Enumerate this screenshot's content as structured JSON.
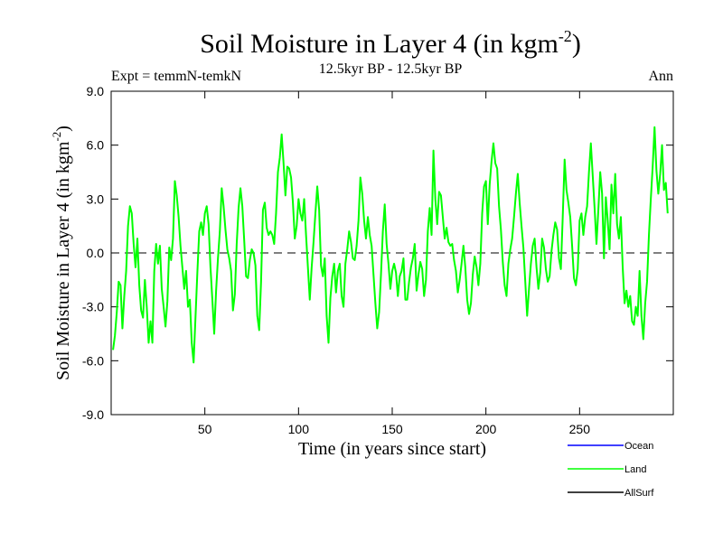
{
  "chart_data": {
    "type": "line",
    "title": "Soil Moisture in Layer 4 (in kgm",
    "title_sup": "-2",
    "title_close": ")",
    "subtitle": "12.5kyr BP - 12.5kyr BP",
    "left_label": "Expt = temmN-temkN",
    "right_label": "Ann",
    "xlabel": "Time (in years since start)",
    "ylabel": "Soil Moisture in Layer 4 (in kgm",
    "ylabel_sup": "-2",
    "ylabel_close": ")",
    "xlim": [
      0,
      300
    ],
    "ylim": [
      -9,
      9
    ],
    "x_ticks": [
      50,
      100,
      150,
      200,
      250
    ],
    "x_tick_labels": [
      "50",
      "100",
      "150",
      "200",
      "250"
    ],
    "y_ticks": [
      -9,
      -6,
      -3,
      0,
      3,
      6,
      9
    ],
    "y_tick_labels": [
      "-9.0",
      "-6.0",
      "-3.0",
      "0.0",
      "3.0",
      "6.0",
      "9.0"
    ],
    "zero_line": true,
    "legend": [
      {
        "name": "Ocean",
        "color": "#0000ff"
      },
      {
        "name": "Land",
        "color": "#00ff00"
      },
      {
        "name": "AllSurf",
        "color": "#000000"
      }
    ],
    "series": [
      {
        "name": "Land",
        "color": "#00ff00",
        "x_start": 1,
        "x_step": 1,
        "values": [
          -5.4,
          -4.6,
          -3.3,
          -1.6,
          -1.8,
          -4.2,
          -2.4,
          -1.0,
          1.5,
          2.6,
          2.2,
          0.5,
          -0.8,
          0.8,
          -1.8,
          -3.2,
          -3.6,
          -1.5,
          -3.0,
          -5.0,
          -3.8,
          -5.0,
          -1.0,
          0.5,
          -0.6,
          0.4,
          -2.0,
          -3.0,
          -4.1,
          -2.7,
          0.3,
          -0.4,
          0.8,
          4.0,
          3.2,
          2.0,
          0.4,
          -0.8,
          -2.0,
          -1.0,
          -3.0,
          -2.6,
          -5.0,
          -6.1,
          -3.6,
          -1.1,
          1.2,
          1.7,
          1.0,
          2.2,
          2.6,
          1.6,
          -0.8,
          -2.6,
          -4.5,
          -2.1,
          -0.3,
          1.2,
          3.6,
          2.6,
          1.3,
          0.2,
          -0.3,
          -1.0,
          -3.2,
          -2.3,
          0.5,
          2.5,
          3.6,
          2.6,
          0.7,
          -1.3,
          -1.4,
          -0.4,
          0.2,
          0.0,
          -0.7,
          -3.5,
          -4.3,
          -1.6,
          2.4,
          2.8,
          1.4,
          1.0,
          1.2,
          1.0,
          0.5,
          2.2,
          4.5,
          5.3,
          6.6,
          5.0,
          3.2,
          4.8,
          4.7,
          4.2,
          2.8,
          0.8,
          1.5,
          3.0,
          2.2,
          1.8,
          3.0,
          1.0,
          -0.8,
          -2.6,
          -0.8,
          0.6,
          2.2,
          3.7,
          2.4,
          -0.7,
          -1.3,
          -0.3,
          -3.5,
          -5.0,
          -2.5,
          -1.3,
          -0.6,
          -2.2,
          -1.0,
          -0.6,
          -2.4,
          -3.0,
          -0.6,
          0.2,
          1.2,
          0.6,
          -0.3,
          -0.4,
          0.4,
          1.8,
          4.2,
          3.3,
          1.8,
          0.8,
          2.0,
          1.0,
          0.4,
          -1.2,
          -2.8,
          -4.2,
          -3.3,
          -1.2,
          1.2,
          2.7,
          0.5,
          -0.6,
          -2.0,
          -1.0,
          -0.6,
          -1.1,
          -2.4,
          -1.3,
          -1.0,
          -0.3,
          -2.6,
          -2.6,
          -1.6,
          -0.8,
          -0.3,
          0.5,
          -2.1,
          -1.2,
          -0.5,
          -0.9,
          -2.4,
          -1.5,
          1.2,
          2.5,
          1.0,
          5.7,
          3.0,
          1.6,
          3.4,
          3.2,
          2.0,
          0.8,
          1.4,
          0.6,
          0.4,
          0.5,
          -0.4,
          -1.0,
          -2.2,
          -1.5,
          -0.6,
          0.4,
          -0.8,
          -2.6,
          -3.4,
          -2.8,
          -1.2,
          -0.2,
          -0.8,
          -1.8,
          -0.6,
          2.2,
          3.7,
          4.0,
          1.6,
          3.8,
          5.1,
          6.1,
          5.0,
          4.7,
          2.6,
          1.3,
          -0.5,
          -1.8,
          -2.4,
          -0.6,
          0.2,
          0.8,
          2.0,
          3.3,
          4.4,
          2.8,
          1.5,
          0.3,
          -1.6,
          -3.5,
          -2.0,
          -0.6,
          0.4,
          0.8,
          -0.8,
          -2.0,
          -1.1,
          0.8,
          0.3,
          -0.9,
          -1.6,
          -1.3,
          0.1,
          1.0,
          1.7,
          1.3,
          -0.3,
          -0.9,
          2.0,
          5.2,
          3.5,
          2.8,
          2.0,
          0.4,
          -1.4,
          -1.8,
          -0.9,
          1.8,
          2.2,
          1.0,
          2.0,
          2.6,
          4.5,
          6.1,
          4.3,
          2.5,
          0.5,
          2.4,
          4.5,
          3.3,
          -0.3,
          3.1,
          1.8,
          0.2,
          3.8,
          2.2,
          4.4,
          1.6,
          0.8,
          2.0,
          -0.8,
          -2.8,
          -2.1,
          -3.0,
          -2.4,
          -3.8,
          -4.0,
          -3.0,
          -3.5,
          -1.0,
          -3.5,
          -4.8,
          -2.8,
          -1.6,
          1.0,
          3.0,
          4.8,
          7.0,
          4.6,
          3.3,
          4.4,
          6.0,
          3.5,
          3.9,
          2.2
        ]
      }
    ]
  }
}
